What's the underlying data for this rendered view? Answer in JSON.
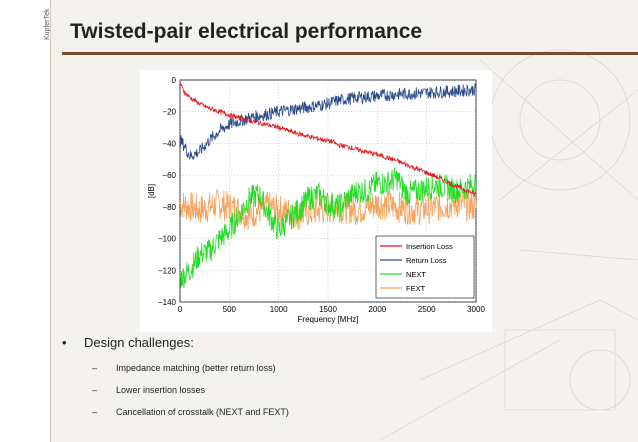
{
  "slide": {
    "brand": "KupferTek",
    "title": "Twisted-pair electrical performance",
    "bullets": {
      "main": "Design challenges:",
      "sub": [
        "Impedance matching (better return loss)",
        "Lower insertion losses",
        "Cancellation of crosstalk (NEXT and FEXT)"
      ]
    }
  },
  "chart_data": {
    "type": "line",
    "title": "",
    "xlabel": "Frequency [MHz]",
    "ylabel": "[dB]",
    "xlim": [
      0,
      3000
    ],
    "ylim": [
      -140,
      0
    ],
    "xticks": [
      0,
      500,
      1000,
      1500,
      2000,
      2500,
      3000
    ],
    "yticks": [
      0,
      -20,
      -40,
      -60,
      -80,
      -100,
      -120,
      -140
    ],
    "grid": true,
    "legend_position": "bottom-right",
    "series": [
      {
        "name": "Insertion Loss",
        "color": "#e0181e",
        "noise": 1.5,
        "x": [
          0,
          20,
          50,
          100,
          200,
          300,
          400,
          500,
          600,
          800,
          1000,
          1200,
          1400,
          1550,
          1600,
          1700,
          1800,
          2000,
          2200,
          2400,
          2600,
          2800,
          3000
        ],
        "y": [
          -1,
          -5,
          -8,
          -11,
          -15,
          -18,
          -20,
          -22,
          -24,
          -27,
          -30,
          -34,
          -37,
          -39,
          -41,
          -42,
          -44,
          -47,
          -51,
          -56,
          -61,
          -67,
          -72
        ]
      },
      {
        "name": "Return Loss",
        "color": "#2b4a8c",
        "noise": 4,
        "x": [
          0,
          50,
          100,
          200,
          300,
          400,
          500,
          700,
          1000,
          1300,
          1500,
          1600,
          1800,
          2000,
          2200,
          2500,
          2800,
          3000
        ],
        "y": [
          -38,
          -42,
          -48,
          -45,
          -38,
          -32,
          -28,
          -24,
          -20,
          -17,
          -15,
          -13,
          -11,
          -10,
          -9,
          -8,
          -7,
          -6
        ]
      },
      {
        "name": "NEXT",
        "color": "#22dd22",
        "noise": 8,
        "x": [
          0,
          100,
          200,
          300,
          400,
          500,
          600,
          700,
          800,
          900,
          1000,
          1100,
          1200,
          1300,
          1400,
          1500,
          1600,
          1700,
          1800,
          1900,
          2000,
          2100,
          2200,
          2300,
          2400,
          2500,
          2600,
          2700,
          2800,
          3000
        ],
        "y": [
          -125,
          -120,
          -110,
          -108,
          -100,
          -95,
          -85,
          -75,
          -72,
          -85,
          -95,
          -88,
          -82,
          -75,
          -72,
          -78,
          -80,
          -75,
          -70,
          -70,
          -65,
          -65,
          -62,
          -72,
          -70,
          -68,
          -66,
          -68,
          -70,
          -65
        ]
      },
      {
        "name": "FEXT",
        "color": "#f6a25a",
        "noise": 10,
        "x": [
          0,
          100,
          200,
          300,
          400,
          500,
          600,
          700,
          800,
          900,
          1000,
          1200,
          1400,
          1600,
          1800,
          2000,
          2200,
          2400,
          2600,
          2800,
          3000
        ],
        "y": [
          -78,
          -80,
          -82,
          -80,
          -78,
          -80,
          -82,
          -85,
          -82,
          -80,
          -82,
          -85,
          -82,
          -80,
          -82,
          -78,
          -80,
          -82,
          -80,
          -78,
          -80
        ]
      }
    ]
  }
}
